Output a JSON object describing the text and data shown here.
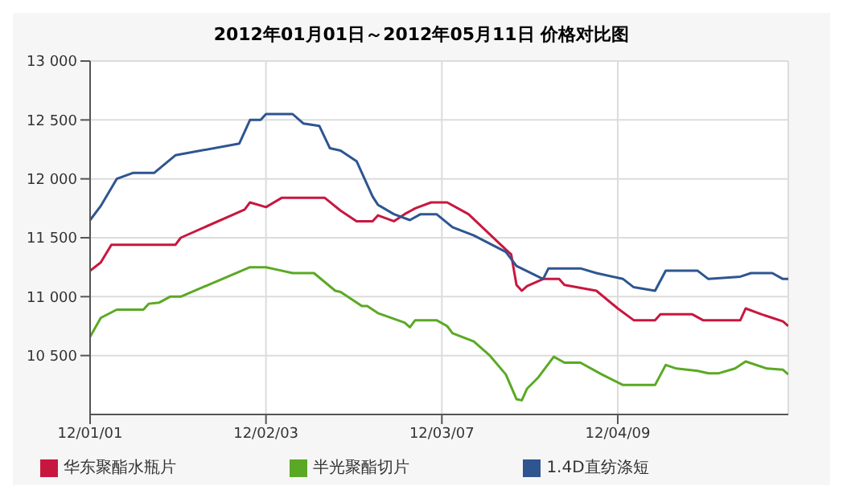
{
  "chart_data": {
    "type": "line",
    "title": "2012年01月01日～2012年05月11日 价格对比图",
    "xlim": [
      "2012-01-01",
      "2012-05-11"
    ],
    "xticks": [
      {
        "value": "2012-01-01",
        "label": "12/01/01"
      },
      {
        "value": "2012-02-03",
        "label": "12/02/03"
      },
      {
        "value": "2012-03-07",
        "label": "12/03/07"
      },
      {
        "value": "2012-04-09",
        "label": "12/04/09"
      }
    ],
    "ylim": [
      10000,
      13000
    ],
    "yticks": [
      {
        "value": 10500,
        "label": "10 500"
      },
      {
        "value": 11000,
        "label": "11 000"
      },
      {
        "value": 11500,
        "label": "11 500"
      },
      {
        "value": 12000,
        "label": "12 000"
      },
      {
        "value": 12500,
        "label": "12 500"
      },
      {
        "value": 13000,
        "label": "13 000"
      }
    ],
    "grid": true,
    "legend": "bottom",
    "marker": "none",
    "line_style": "solid",
    "series": [
      {
        "name": "华东聚酯水瓶片",
        "color": "#c8173f",
        "x": [
          "2012-01-01",
          "2012-01-03",
          "2012-01-05",
          "2012-01-17",
          "2012-01-18",
          "2012-01-30",
          "2012-01-31",
          "2012-02-03",
          "2012-02-06",
          "2012-02-14",
          "2012-02-17",
          "2012-02-20",
          "2012-02-23",
          "2012-02-24",
          "2012-02-27",
          "2012-02-29",
          "2012-03-02",
          "2012-03-05",
          "2012-03-08",
          "2012-03-12",
          "2012-03-19",
          "2012-03-20",
          "2012-03-21",
          "2012-03-22",
          "2012-03-23",
          "2012-03-26",
          "2012-03-29",
          "2012-03-30",
          "2012-04-05",
          "2012-04-09",
          "2012-04-12",
          "2012-04-16",
          "2012-04-17",
          "2012-04-23",
          "2012-04-25",
          "2012-05-02",
          "2012-05-03",
          "2012-05-06",
          "2012-05-08",
          "2012-05-10",
          "2012-05-11"
        ],
        "values": [
          11220,
          11290,
          11440,
          11440,
          11500,
          11740,
          11800,
          11760,
          11840,
          11840,
          11730,
          11640,
          11640,
          11690,
          11640,
          11700,
          11750,
          11800,
          11800,
          11700,
          11400,
          11360,
          11100,
          11050,
          11090,
          11150,
          11150,
          11100,
          11050,
          10900,
          10800,
          10800,
          10850,
          10850,
          10800,
          10800,
          10900,
          10850,
          10820,
          10790,
          10750
        ]
      },
      {
        "name": "半光聚酯切片",
        "color": "#5aa924",
        "x": [
          "2012-01-01",
          "2012-01-03",
          "2012-01-06",
          "2012-01-11",
          "2012-01-12",
          "2012-01-14",
          "2012-01-16",
          "2012-01-18",
          "2012-01-31",
          "2012-02-03",
          "2012-02-05",
          "2012-02-08",
          "2012-02-12",
          "2012-02-16",
          "2012-02-17",
          "2012-02-19",
          "2012-02-21",
          "2012-02-22",
          "2012-02-24",
          "2012-02-29",
          "2012-03-01",
          "2012-03-02",
          "2012-03-06",
          "2012-03-08",
          "2012-03-09",
          "2012-03-13",
          "2012-03-16",
          "2012-03-19",
          "2012-03-21",
          "2012-03-22",
          "2012-03-23",
          "2012-03-25",
          "2012-03-28",
          "2012-03-30",
          "2012-04-02",
          "2012-04-06",
          "2012-04-10",
          "2012-04-16",
          "2012-04-18",
          "2012-04-20",
          "2012-04-24",
          "2012-04-26",
          "2012-04-28",
          "2012-05-01",
          "2012-05-03",
          "2012-05-07",
          "2012-05-10",
          "2012-05-11"
        ],
        "values": [
          10660,
          10820,
          10890,
          10890,
          10940,
          10950,
          11000,
          11000,
          11250,
          11250,
          11230,
          11200,
          11200,
          11050,
          11040,
          10980,
          10920,
          10920,
          10860,
          10780,
          10740,
          10800,
          10800,
          10750,
          10690,
          10620,
          10500,
          10340,
          10130,
          10120,
          10220,
          10310,
          10490,
          10440,
          10440,
          10340,
          10250,
          10250,
          10420,
          10390,
          10370,
          10350,
          10350,
          10390,
          10450,
          10390,
          10380,
          10340
        ]
      },
      {
        "name": "1.4D直纺涤短",
        "color": "#2e5590",
        "x": [
          "2012-01-01",
          "2012-01-03",
          "2012-01-06",
          "2012-01-09",
          "2012-01-13",
          "2012-01-17",
          "2012-01-29",
          "2012-01-31",
          "2012-02-02",
          "2012-02-03",
          "2012-02-08",
          "2012-02-10",
          "2012-02-13",
          "2012-02-15",
          "2012-02-17",
          "2012-02-20",
          "2012-02-23",
          "2012-02-24",
          "2012-02-27",
          "2012-03-01",
          "2012-03-03",
          "2012-03-06",
          "2012-03-09",
          "2012-03-13",
          "2012-03-19",
          "2012-03-21",
          "2012-03-26",
          "2012-03-27",
          "2012-04-02",
          "2012-04-05",
          "2012-04-10",
          "2012-04-12",
          "2012-04-16",
          "2012-04-18",
          "2012-04-24",
          "2012-04-26",
          "2012-05-02",
          "2012-05-04",
          "2012-05-08",
          "2012-05-10",
          "2012-05-11"
        ],
        "values": [
          11650,
          11770,
          12000,
          12050,
          12050,
          12200,
          12300,
          12500,
          12500,
          12550,
          12550,
          12470,
          12450,
          12260,
          12240,
          12150,
          11850,
          11780,
          11700,
          11650,
          11700,
          11700,
          11590,
          11520,
          11380,
          11260,
          11150,
          11240,
          11240,
          11200,
          11150,
          11080,
          11050,
          11220,
          11220,
          11150,
          11170,
          11200,
          11200,
          11150,
          11150
        ]
      }
    ]
  }
}
